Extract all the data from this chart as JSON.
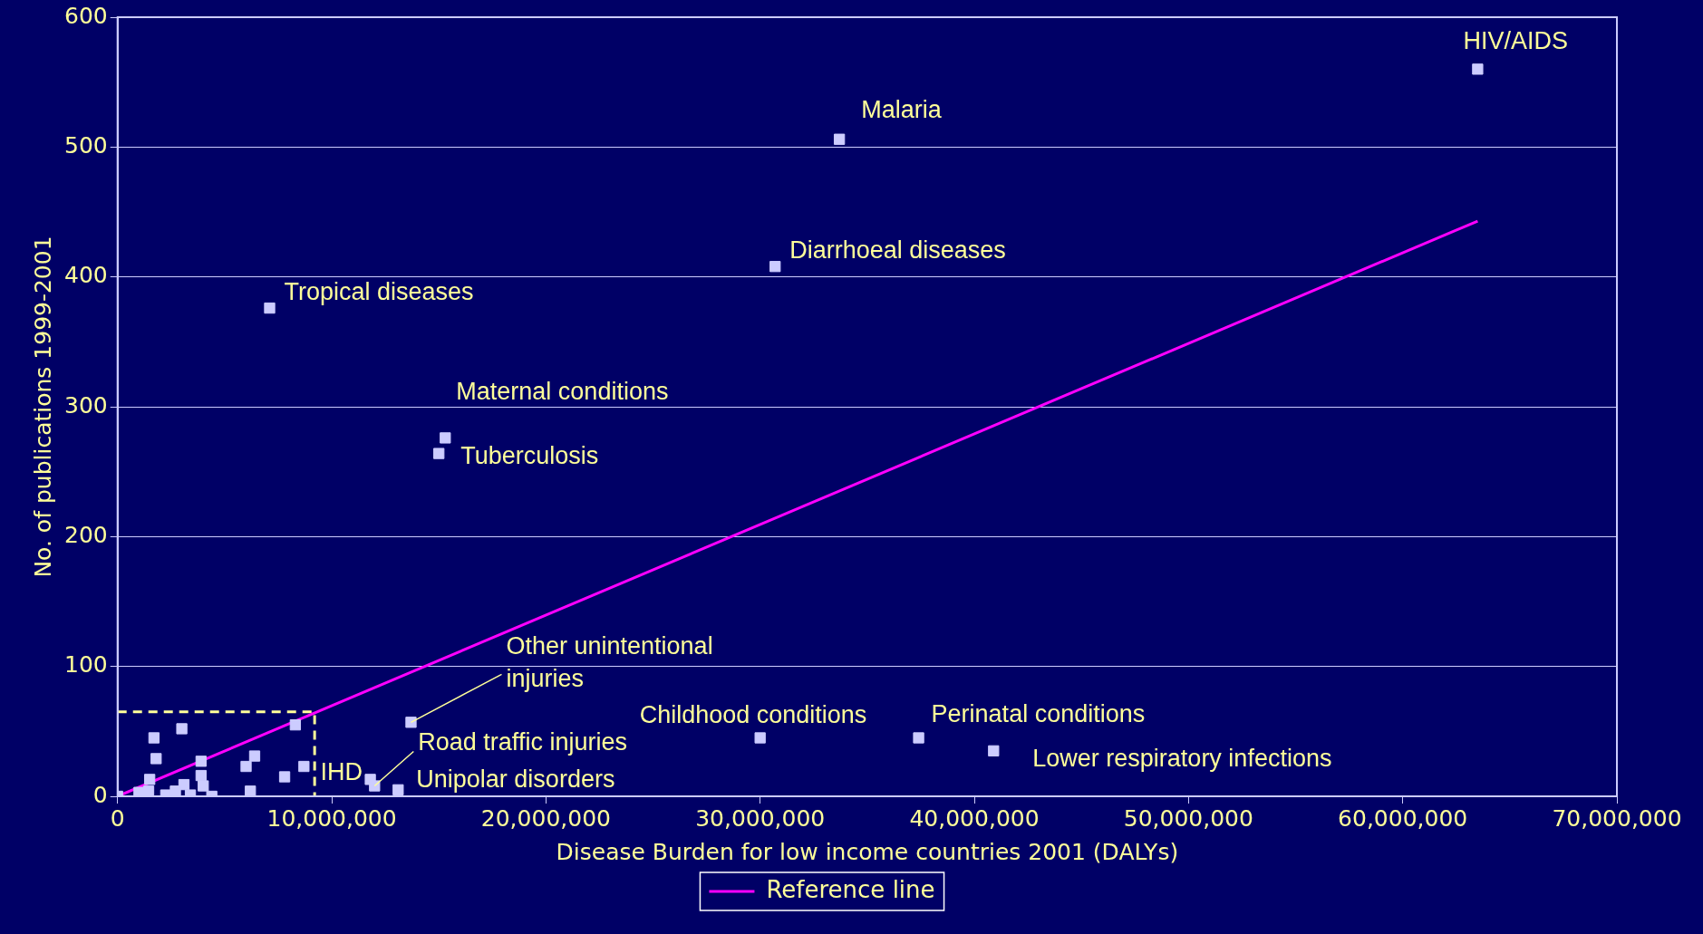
{
  "chart_data": {
    "type": "scatter",
    "xlabel": "Disease Burden for low income countries 2001 (DALYs)",
    "ylabel": "No. of publications 1999-2001",
    "xlim": [
      0,
      70000000
    ],
    "xticks": [
      {
        "value": 0,
        "label": "0"
      },
      {
        "value": 10000000,
        "label": "10,000,000"
      },
      {
        "value": 20000000,
        "label": "20,000,000"
      },
      {
        "value": 30000000,
        "label": "30,000,000"
      },
      {
        "value": 40000000,
        "label": "40,000,000"
      },
      {
        "value": 50000000,
        "label": "50,000,000"
      },
      {
        "value": 60000000,
        "label": "60,000,000"
      },
      {
        "value": 70000000,
        "label": "70,000,000"
      }
    ],
    "ylim": [
      0,
      600
    ],
    "yticks": [
      0,
      100,
      200,
      300,
      400,
      500,
      600
    ],
    "grid": "y",
    "legend": "bottom",
    "series": [
      {
        "marker": "square",
        "color": "#ccccff",
        "x": [
          63500000,
          33700000,
          30700000,
          7100000,
          15300000,
          15000000,
          13700000,
          30000000,
          37400000,
          40900000,
          11800000,
          12000000,
          13100000,
          0,
          1700000,
          3000000,
          1800000,
          1500000,
          3900000,
          3900000,
          1000000,
          2250000,
          3100000,
          3400000,
          4400000,
          4000000,
          8300000,
          6400000,
          6000000,
          6200000,
          7800000,
          8700000,
          1450000,
          2700000
        ],
        "values": [
          560,
          506,
          408,
          376,
          276,
          264,
          57,
          45,
          45,
          35,
          13,
          8,
          5,
          0,
          45,
          52,
          29,
          13,
          27,
          16,
          3,
          1,
          9,
          1,
          0,
          8,
          55,
          31,
          23,
          4,
          15,
          23,
          4,
          4
        ]
      },
      {
        "type": "line",
        "name": "Reference line",
        "color": "#ff00ff",
        "marker": "none",
        "line_style": "solid",
        "x": [
          0,
          63500000
        ],
        "values": [
          0,
          443
        ]
      },
      {
        "type": "line",
        "color": "#ffff99",
        "marker": "none",
        "line_style": "dashed",
        "x": [
          0,
          9200000,
          9200000
        ],
        "values": [
          65,
          65,
          0
        ]
      }
    ],
    "annotations": [
      {
        "text": "HIV/AIDS",
        "x": 63500000,
        "y": 560
      },
      {
        "text": "Malaria",
        "x": 33700000,
        "y": 506
      },
      {
        "text": "Diarrhoeal diseases",
        "x": 30700000,
        "y": 408
      },
      {
        "text": "Tropical diseases",
        "x": 7100000,
        "y": 376
      },
      {
        "text": "Maternal conditions",
        "x": 15300000,
        "y": 276
      },
      {
        "text": "Tuberculosis",
        "x": 15000000,
        "y": 264
      },
      {
        "text": "Other unintentional injuries",
        "x": 13700000,
        "y": 57
      },
      {
        "text": "Childhood conditions",
        "x": 30000000,
        "y": 45
      },
      {
        "text": "Perinatal conditions",
        "x": 37400000,
        "y": 45
      },
      {
        "text": "Lower respiratory infections",
        "x": 40900000,
        "y": 35
      },
      {
        "text": "IHD",
        "x": 11800000,
        "y": 13
      },
      {
        "text": "Road traffic injuries",
        "x": 12000000,
        "y": 8
      },
      {
        "text": "Unipolar disorders",
        "x": 13100000,
        "y": 5
      }
    ]
  }
}
